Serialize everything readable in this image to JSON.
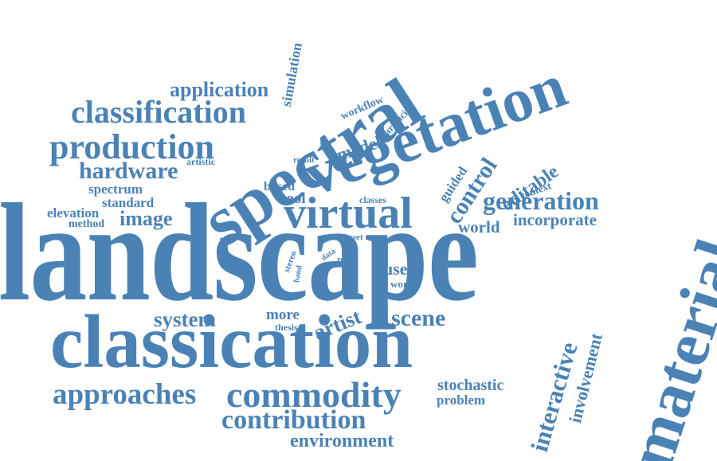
{
  "accent_color": "#4a82b6",
  "background_color": "#ffffff",
  "words": {
    "landscape": "landscape",
    "classication": "classication",
    "spectral": "spectral",
    "vegetation": "vegetation",
    "material": "material",
    "virtual": "virtual",
    "commodity": "commodity",
    "production": "production",
    "classification": "classification",
    "approaches": "approaches",
    "contribution": "contribution",
    "hardware": "hardware",
    "generation": "generation",
    "control": "control",
    "interactive": "interactive",
    "image": "image",
    "application": "application",
    "scene": "scene",
    "system": "system",
    "artist": "artist",
    "environment": "environment",
    "editable": "editable",
    "incorporate": "incorporate",
    "model": "model",
    "involvement": "involvement",
    "world": "world",
    "user": "user",
    "stochastic": "stochastic",
    "simulation": "simulation",
    "spectrum": "spectrum",
    "standard": "standard",
    "elevation": "elevation",
    "tool": "tool",
    "based": "based",
    "guided": "guided",
    "more": "more",
    "problem": "problem",
    "method": "method",
    "workflow": "workflow",
    "artificial": "artificial",
    "artistic": "artistic",
    "stereo": "stereo",
    "thesis": "thesis",
    "work": "work",
    "context": "context",
    "classes": "classes",
    "result": "result",
    "asset": "asset",
    "real": "real",
    "data": "data",
    "band": "band"
  }
}
